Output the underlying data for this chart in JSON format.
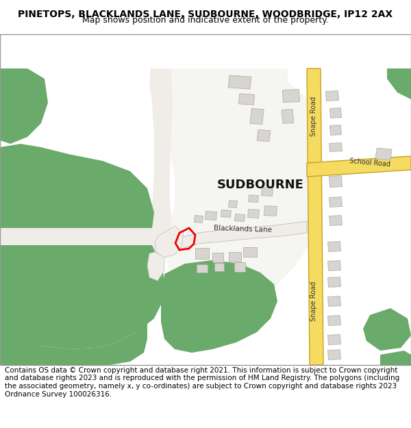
{
  "title": "PINETOPS, BLACKLANDS LANE, SUDBOURNE, WOODBRIDGE, IP12 2AX",
  "subtitle": "Map shows position and indicative extent of the property.",
  "footer": "Contains OS data © Crown copyright and database right 2021. This information is subject to Crown copyright and database rights 2023 and is reproduced with the permission of HM Land Registry. The polygons (including the associated geometry, namely x, y co-ordinates) are subject to Crown copyright and database rights 2023 Ordnance Survey 100026316.",
  "bg_color": "#ffffff",
  "map_bg": "#f5f5f2",
  "green_color": "#6aaa6a",
  "road_yellow": "#f5dc60",
  "road_yellow_edge": "#c8a020",
  "road_white": "#f0ede8",
  "road_edge": "#c0bdb8",
  "building_color": "#d8d5d0",
  "building_edge": "#aaa8a4",
  "red_outline": "#ee0000",
  "title_fontsize": 10,
  "subtitle_fontsize": 9,
  "footer_fontsize": 7.5
}
